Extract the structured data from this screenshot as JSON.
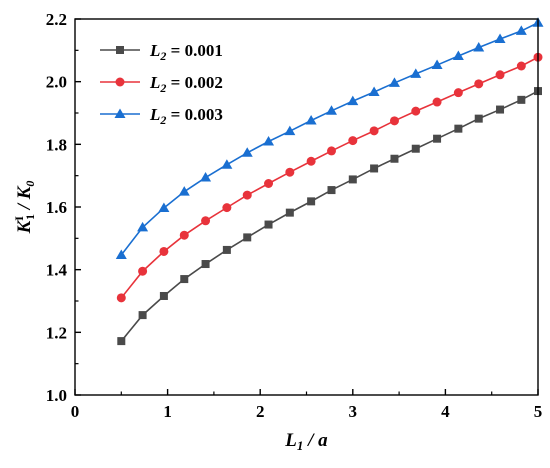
{
  "chart_data": {
    "type": "line",
    "xlim": [
      0,
      5
    ],
    "ylim": [
      1.0,
      2.2
    ],
    "x_ticks": [
      0,
      1,
      2,
      3,
      4,
      5
    ],
    "y_ticks": [
      1.0,
      1.2,
      1.4,
      1.6,
      1.8,
      2.0,
      2.2
    ],
    "x_tick_labels": [
      "0",
      "1",
      "2",
      "3",
      "4",
      "5"
    ],
    "y_tick_labels": [
      "1.0",
      "1.2",
      "1.4",
      "1.6",
      "1.8",
      "2.0",
      "2.2"
    ],
    "xlabel": "L1 / a",
    "ylabel": "KI1 / K0",
    "legend_position": "top-left",
    "grid": false,
    "x": [
      0.5,
      0.73,
      0.96,
      1.18,
      1.41,
      1.64,
      1.86,
      2.09,
      2.32,
      2.55,
      2.77,
      3.0,
      3.23,
      3.45,
      3.68,
      3.91,
      4.14,
      4.36,
      4.59,
      4.82,
      5.0
    ],
    "series": [
      {
        "name": "L2 = 0.001",
        "color": "#4a4a4a",
        "marker": "square",
        "values": [
          1.172,
          1.255,
          1.316,
          1.37,
          1.418,
          1.463,
          1.503,
          1.544,
          1.582,
          1.618,
          1.654,
          1.688,
          1.723,
          1.754,
          1.786,
          1.818,
          1.85,
          1.882,
          1.911,
          1.942,
          1.97
        ]
      },
      {
        "name": "L2 = 0.002",
        "color": "#e8333b",
        "marker": "circle",
        "values": [
          1.31,
          1.395,
          1.458,
          1.51,
          1.556,
          1.598,
          1.638,
          1.675,
          1.711,
          1.746,
          1.779,
          1.812,
          1.843,
          1.875,
          1.906,
          1.935,
          1.965,
          1.993,
          2.022,
          2.05,
          2.078
        ]
      },
      {
        "name": "L2 = 0.003",
        "color": "#1a6fd1",
        "marker": "triangle",
        "values": [
          1.447,
          1.535,
          1.597,
          1.649,
          1.694,
          1.735,
          1.773,
          1.809,
          1.842,
          1.876,
          1.907,
          1.938,
          1.967,
          1.996,
          2.025,
          2.053,
          2.082,
          2.109,
          2.136,
          2.162,
          2.188
        ]
      }
    ]
  }
}
